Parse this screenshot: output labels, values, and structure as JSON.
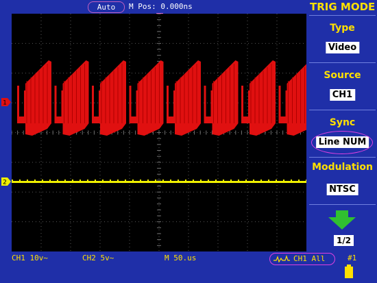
{
  "header": {
    "mode": "Auto",
    "mpos": "M Pos: 0.000ns"
  },
  "menu": {
    "title": "TRIG MODE",
    "items": [
      {
        "label": "Type",
        "value": "Video"
      },
      {
        "label": "Source",
        "value": "CH1"
      },
      {
        "label": "Sync",
        "value": "Line NUM"
      },
      {
        "label": "Modulation",
        "value": "NTSC"
      }
    ],
    "page": "1/2"
  },
  "footer": {
    "ch1": "CH1 10v~",
    "ch2": "CH2 5v~",
    "timebase": "M 50.us",
    "trigger": "CH1 All",
    "index": "#1"
  },
  "markers": {
    "ch1": "1",
    "ch2": "2"
  },
  "colors": {
    "background": "#1f2fa8",
    "screen": "#000000",
    "ch1_trace": "#e01010",
    "ch2_trace": "#f0f000",
    "accent": "#ffe000",
    "highlight_oval": "#e040e0"
  },
  "icons": {
    "trigger_marker": "trigger-position-icon",
    "next_page": "down-arrow-icon",
    "trigger_edge": "video-trigger-icon",
    "battery": "battery-icon"
  }
}
